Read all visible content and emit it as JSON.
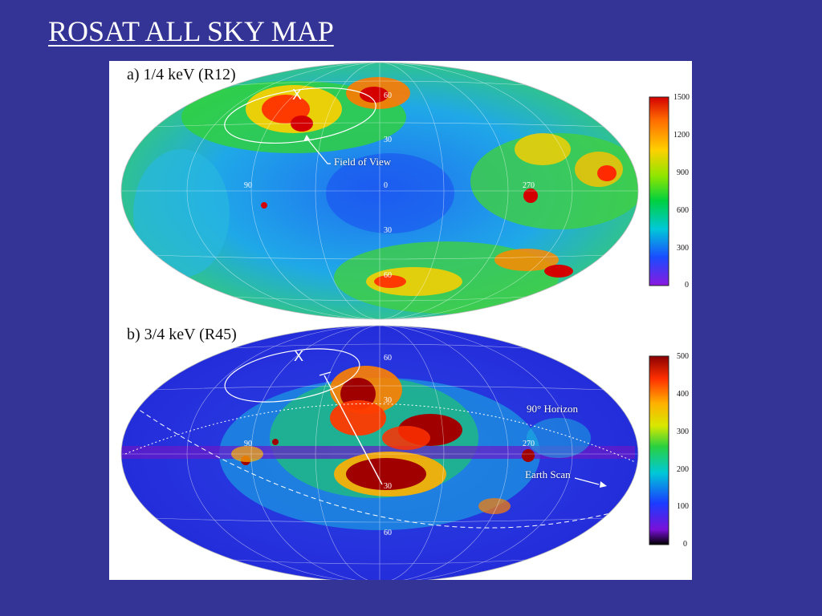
{
  "slide": {
    "title": "ROSAT ALL SKY MAP"
  },
  "panel_a": {
    "label": "a) 1/4 keV (R12)",
    "colorbar_ticks": [
      "1500",
      "1200",
      "900",
      "600",
      "300",
      "0"
    ],
    "coords": [
      "60",
      "30",
      "0",
      "90",
      "270",
      "30",
      "60"
    ],
    "x_mark": "X",
    "annotation": "Field of View"
  },
  "panel_b": {
    "label": "b) 3/4 keV (R45)",
    "colorbar_ticks": [
      "500",
      "400",
      "300",
      "200",
      "100",
      "0"
    ],
    "coords": [
      "60",
      "30",
      "90",
      "270",
      "30",
      "60"
    ],
    "x_mark": "X",
    "annotation_horizon": "90° Horizon",
    "annotation_earth": "Earth Scan"
  },
  "colors": {
    "background": "#343396",
    "map_a_base": "#1fb4e6",
    "map_b_base": "#2b2ee0"
  }
}
